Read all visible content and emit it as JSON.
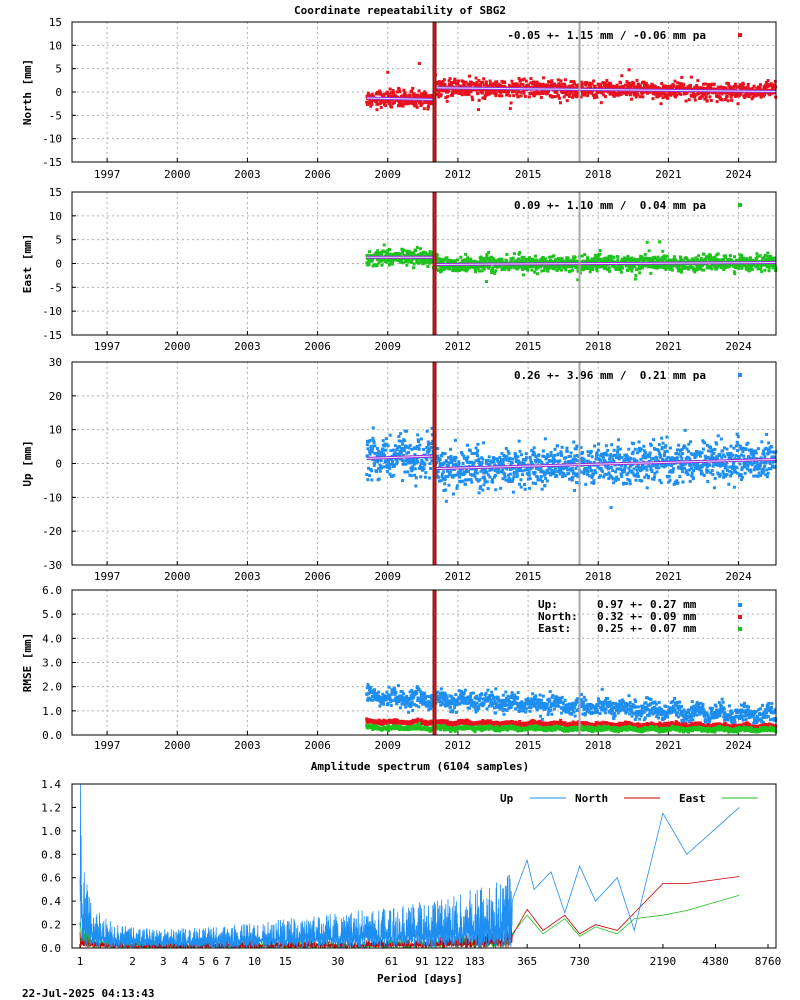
{
  "chart_data": [
    {
      "id": "north",
      "type": "scatter",
      "title": "Coordinate repeatability of SBG2",
      "ylabel": "North [mm]",
      "ylim": [
        -15,
        15
      ],
      "yticks": [
        15,
        10,
        5,
        0,
        -5,
        -10,
        -15
      ],
      "xlim": [
        1995.5,
        2025.6
      ],
      "xticks": [
        "1997",
        "2000",
        "2003",
        "2006",
        "2009",
        "2012",
        "2015",
        "2018",
        "2021",
        "2024"
      ],
      "annotation": "-0.05 +- 1.15 mm / -0.06 mm pa",
      "color": "#e8121e",
      "data_start": 2008.1,
      "data_end": 2025.6,
      "offset_epoch": 2011.0,
      "trend": [
        [
          2008.1,
          -1.3
        ],
        [
          2011.0,
          -1.6
        ],
        [
          2011.0,
          0.9
        ],
        [
          2025.6,
          0.1
        ]
      ],
      "scatter_sigma": 1.15
    },
    {
      "id": "east",
      "type": "scatter",
      "ylabel": "East [mm]",
      "ylim": [
        -15,
        15
      ],
      "yticks": [
        15,
        10,
        5,
        0,
        -5,
        -10,
        -15
      ],
      "xlim": [
        1995.5,
        2025.6
      ],
      "xticks": [
        "1997",
        "2000",
        "2003",
        "2006",
        "2009",
        "2012",
        "2015",
        "2018",
        "2021",
        "2024"
      ],
      "annotation": "0.09 +- 1.10 mm /  0.04 mm pa",
      "color": "#1ec21e",
      "data_start": 2008.1,
      "data_end": 2025.6,
      "offset_epoch": 2011.0,
      "trend": [
        [
          2008.1,
          1.3
        ],
        [
          2011.0,
          1.3
        ],
        [
          2011.0,
          -0.2
        ],
        [
          2025.6,
          0.2
        ]
      ],
      "scatter_sigma": 1.1
    },
    {
      "id": "up",
      "type": "scatter",
      "ylabel": "Up [mm]",
      "ylim": [
        -30,
        30
      ],
      "yticks": [
        30,
        20,
        10,
        0,
        -10,
        -20,
        -30
      ],
      "xlim": [
        1995.5,
        2025.6
      ],
      "xticks": [
        "1997",
        "2000",
        "2003",
        "2006",
        "2009",
        "2012",
        "2015",
        "2018",
        "2021",
        "2024"
      ],
      "annotation": "0.26 +- 3.96 mm /  0.21 mm pa",
      "color": "#1e8ef0",
      "data_start": 2008.1,
      "data_end": 2025.6,
      "offset_epoch": 2011.0,
      "trend": [
        [
          2008.1,
          1.5
        ],
        [
          2011.0,
          2.2
        ],
        [
          2011.0,
          -1.5
        ],
        [
          2025.6,
          1.2
        ]
      ],
      "scatter_sigma": 3.96
    },
    {
      "id": "rmse",
      "type": "scatter",
      "ylabel": "RMSE [mm]",
      "ylim": [
        0,
        6
      ],
      "yticks": [
        "6.0",
        "5.0",
        "4.0",
        "3.0",
        "2.0",
        "1.0",
        "0.0"
      ],
      "xlim": [
        1995.5,
        2025.6
      ],
      "xticks": [
        "1997",
        "2000",
        "2003",
        "2006",
        "2009",
        "2012",
        "2015",
        "2018",
        "2021",
        "2024"
      ],
      "legend": [
        {
          "name": "Up:",
          "text": "0.97 +- 0.27 mm",
          "color": "#1e8ef0"
        },
        {
          "name": "North:",
          "text": "0.32 +- 0.09 mm",
          "color": "#e8121e"
        },
        {
          "name": "East:",
          "text": "0.25 +- 0.07 mm",
          "color": "#1ec21e"
        }
      ],
      "series": [
        {
          "name": "Up",
          "values_start": 1.6,
          "values_end": 0.8
        },
        {
          "name": "North",
          "values_start": 0.55,
          "values_end": 0.35
        },
        {
          "name": "East",
          "values_start": 0.3,
          "values_end": 0.22
        }
      ]
    },
    {
      "id": "spectrum",
      "type": "line",
      "title": "Amplitude spectrum (6104 samples)",
      "xlabel": "Period [days]",
      "ylim": [
        0,
        1.4
      ],
      "yticks": [
        "1.4",
        "1.2",
        "1.0",
        "0.8",
        "0.6",
        "0.4",
        "0.2",
        "0.0"
      ],
      "xticks": [
        "1",
        "2",
        "3",
        "4",
        "5",
        "6",
        "7",
        "10",
        "15",
        "30",
        "61",
        "91",
        "122",
        "183",
        "365",
        "730",
        "2190",
        "4380",
        "8760"
      ],
      "xtick_values": [
        1,
        2,
        3,
        4,
        5,
        6,
        7,
        10,
        15,
        30,
        61,
        91,
        122,
        183,
        365,
        730,
        2190,
        4380,
        8760
      ],
      "legend": [
        {
          "name": "Up",
          "color": "#1e8ef0"
        },
        {
          "name": "North",
          "color": "#c80000"
        },
        {
          "name": "East",
          "color": "#1ec21e"
        }
      ],
      "series": [
        {
          "name": "Up",
          "x": [
            1,
            1.05,
            1.2,
            1.5,
            2,
            3,
            5,
            10,
            20,
            40,
            80,
            150,
            250,
            365,
            400,
            500,
            600,
            730,
            900,
            1200,
            1500,
            2190,
            3000,
            6000
          ],
          "y": [
            1.22,
            0.5,
            0.25,
            0.17,
            0.13,
            0.12,
            0.13,
            0.16,
            0.2,
            0.24,
            0.28,
            0.35,
            0.42,
            0.75,
            0.5,
            0.65,
            0.3,
            0.7,
            0.4,
            0.6,
            0.15,
            1.15,
            0.8,
            1.2
          ]
        },
        {
          "name": "North",
          "x": [
            1,
            1.2,
            2,
            5,
            10,
            30,
            80,
            150,
            250,
            365,
            450,
            600,
            730,
            900,
            1200,
            1500,
            2190,
            3000,
            6000
          ],
          "y": [
            0.12,
            0.05,
            0.04,
            0.04,
            0.05,
            0.05,
            0.06,
            0.08,
            0.12,
            0.33,
            0.15,
            0.28,
            0.12,
            0.2,
            0.15,
            0.3,
            0.55,
            0.55,
            0.61
          ]
        },
        {
          "name": "East",
          "x": [
            1,
            1.2,
            2,
            5,
            10,
            30,
            80,
            150,
            250,
            365,
            450,
            600,
            730,
            900,
            1200,
            1500,
            2190,
            3000,
            6000
          ],
          "y": [
            0.18,
            0.07,
            0.05,
            0.05,
            0.05,
            0.05,
            0.06,
            0.08,
            0.1,
            0.28,
            0.12,
            0.25,
            0.1,
            0.18,
            0.12,
            0.25,
            0.28,
            0.32,
            0.45
          ]
        }
      ]
    }
  ],
  "footer": {
    "timestamp": "22-Jul-2025 04:13:43"
  },
  "event_epochs": {
    "antenna_change": 2011.0,
    "other_event": 2017.2
  }
}
